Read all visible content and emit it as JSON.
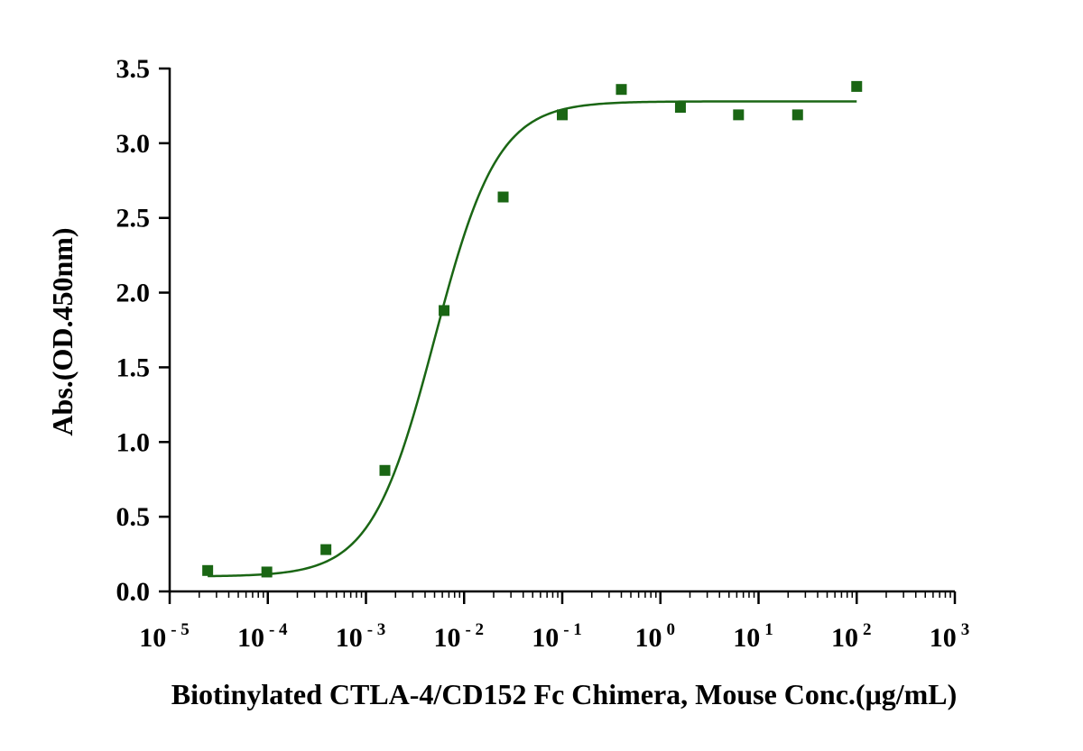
{
  "chart_data": {
    "type": "scatter",
    "xlabel": "Biotinylated CTLA-4/CD152 Fc Chimera, Mouse  Conc.(μg/mL)",
    "ylabel": "Abs.(OD.450nm)",
    "x_scale": "log",
    "xlim": [
      1e-05,
      1000
    ],
    "ylim": [
      0,
      3.5
    ],
    "y_ticks": [
      "0.0",
      "0.5",
      "1.0",
      "1.5",
      "2.0",
      "2.5",
      "3.0",
      "3.5"
    ],
    "x_ticks": [
      {
        "base": "10",
        "exp": "-5",
        "value": 1e-05
      },
      {
        "base": "10",
        "exp": "-4",
        "value": 0.0001
      },
      {
        "base": "10",
        "exp": "-3",
        "value": 0.001
      },
      {
        "base": "10",
        "exp": "-2",
        "value": 0.01
      },
      {
        "base": "10",
        "exp": "-1",
        "value": 0.1
      },
      {
        "base": "10",
        "exp": "0",
        "value": 1
      },
      {
        "base": "10",
        "exp": "1",
        "value": 10
      },
      {
        "base": "10",
        "exp": "2",
        "value": 100
      },
      {
        "base": "10",
        "exp": "3",
        "value": 1000
      }
    ],
    "points": [
      {
        "x": 2.44e-05,
        "y": 0.14
      },
      {
        "x": 9.77e-05,
        "y": 0.13
      },
      {
        "x": 0.000391,
        "y": 0.28
      },
      {
        "x": 0.00156,
        "y": 0.81
      },
      {
        "x": 0.00625,
        "y": 1.88
      },
      {
        "x": 0.025,
        "y": 2.64
      },
      {
        "x": 0.1,
        "y": 3.19
      },
      {
        "x": 0.4,
        "y": 3.36
      },
      {
        "x": 1.6,
        "y": 3.24
      },
      {
        "x": 6.25,
        "y": 3.19
      },
      {
        "x": 25,
        "y": 3.19
      },
      {
        "x": 100,
        "y": 3.38
      }
    ],
    "fit": {
      "bottom": 0.1,
      "top": 3.28,
      "ec50": 0.005,
      "hill": 1.35,
      "x_range": [
        2.44e-05,
        100
      ]
    },
    "colors": {
      "series": "#1a6614",
      "axis": "#000000"
    },
    "grid": false
  }
}
